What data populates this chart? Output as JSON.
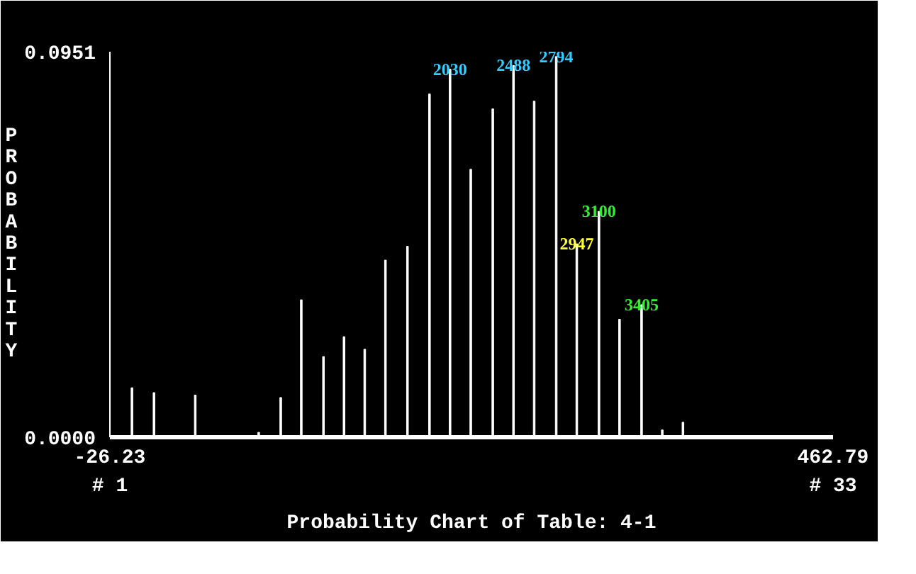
{
  "chart_data": {
    "type": "bar",
    "title": "Probability Chart of Table: 4-1",
    "ylabel": "PROBABILITY",
    "x": [
      -11.3,
      3.6,
      31.5,
      74.4,
      89.3,
      103.2,
      118.2,
      132.1,
      146.1,
      160.1,
      175.0,
      189.9,
      203.8,
      217.8,
      232.7,
      246.7,
      260.7,
      275.6,
      289.5,
      304.5,
      318.4,
      333.3,
      347.3,
      361.3
    ],
    "values": [
      0.0122,
      0.011,
      0.0104,
      0.0012,
      0.0098,
      0.0339,
      0.0199,
      0.0248,
      0.0217,
      0.0437,
      0.0471,
      0.0847,
      0.0908,
      0.0661,
      0.081,
      0.0917,
      0.0829,
      0.0939,
      0.0477,
      0.0557,
      0.0291,
      0.0327,
      0.0018,
      0.0037
    ],
    "color": "#ffffff",
    "xlim": [
      -26.23,
      462.79
    ],
    "xticks": [
      -26.23,
      462.79
    ],
    "ylim": [
      0,
      0.0951
    ],
    "yticks": [
      {
        "value": 0,
        "label": "0.0000"
      },
      0.0951
    ],
    "annotations": [
      "# 1",
      "# 33",
      {
        "text": "2030",
        "x": 203.8,
        "y": 0.0908
      },
      {
        "text": "2488",
        "x": 246.7,
        "y": 0.0917
      },
      {
        "text": "2794",
        "x": 275.6,
        "y": 0.0939
      },
      {
        "text": "2947",
        "x": 289.5,
        "y": 0.0477
      },
      {
        "text": "3100",
        "x": 304.5,
        "y": 0.0557
      },
      {
        "text": "3405",
        "x": 333.3,
        "y": 0.0327
      }
    ]
  }
}
